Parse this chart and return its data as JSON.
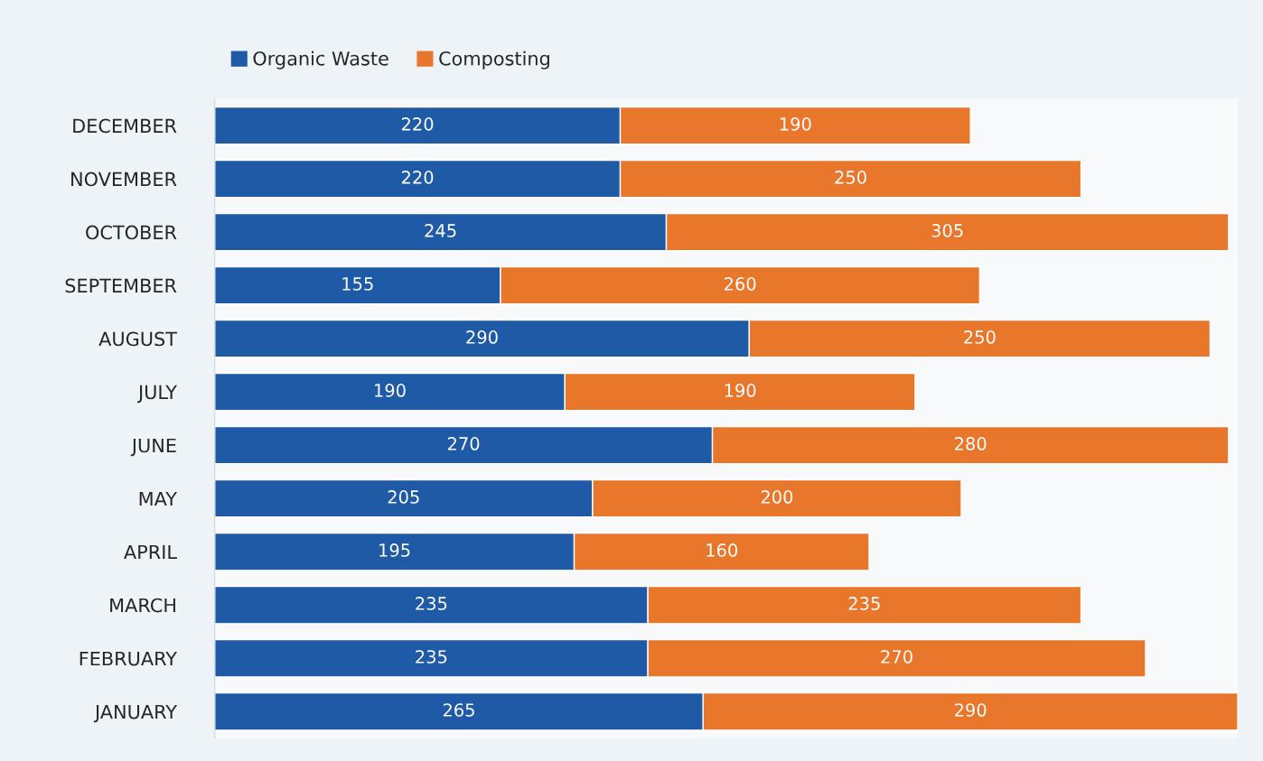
{
  "chart_data": {
    "type": "bar",
    "orientation": "horizontal",
    "stacked": true,
    "data_labels": true,
    "legend": "top left",
    "grid": false,
    "categories": [
      "DECEMBER",
      "NOVEMBER",
      "OCTOBER",
      "SEPTEMBER",
      "AUGUST",
      "JULY",
      "JUNE",
      "MAY",
      "APRIL",
      "MARCH",
      "FEBRUARY",
      "JANUARY"
    ],
    "series": [
      {
        "name": "Organic Waste",
        "color": "#1f5aa6",
        "values": [
          220,
          220,
          245,
          155,
          290,
          190,
          270,
          205,
          195,
          235,
          235,
          265
        ]
      },
      {
        "name": "Composting",
        "color": "#e8762b",
        "values": [
          190,
          250,
          305,
          260,
          250,
          190,
          280,
          200,
          160,
          235,
          270,
          290
        ]
      }
    ]
  }
}
